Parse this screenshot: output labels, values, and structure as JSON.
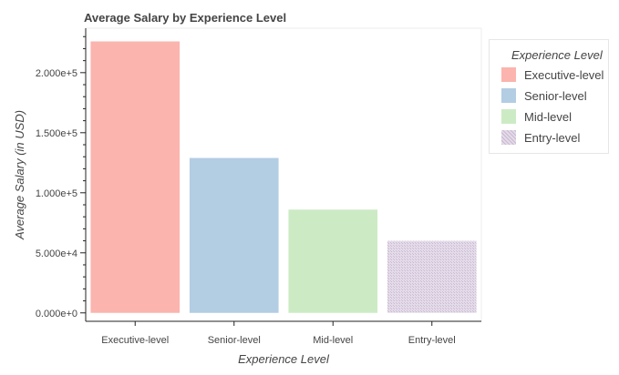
{
  "chart_data": {
    "type": "bar",
    "title": "Average Salary by Experience Level",
    "xlabel": "Experience Level",
    "ylabel": "Average Salary (in USD)",
    "categories": [
      "Executive-level",
      "Senior-level",
      "Mid-level",
      "Entry-level"
    ],
    "values": [
      226000,
      129000,
      86000,
      60000
    ],
    "colors": [
      "#fbb4ae",
      "#b3cde3",
      "#ccebc5",
      "#decbe4"
    ],
    "ylim": [
      -7000,
      237000
    ],
    "yticks": [
      0,
      50000,
      100000,
      150000,
      200000
    ],
    "ytick_labels": [
      "0.000e+0",
      "5.000e+4",
      "1.000e+5",
      "1.500e+5",
      "2.000e+5"
    ],
    "grid": false,
    "legend": {
      "title": "Experience Level",
      "placement": "right"
    }
  }
}
